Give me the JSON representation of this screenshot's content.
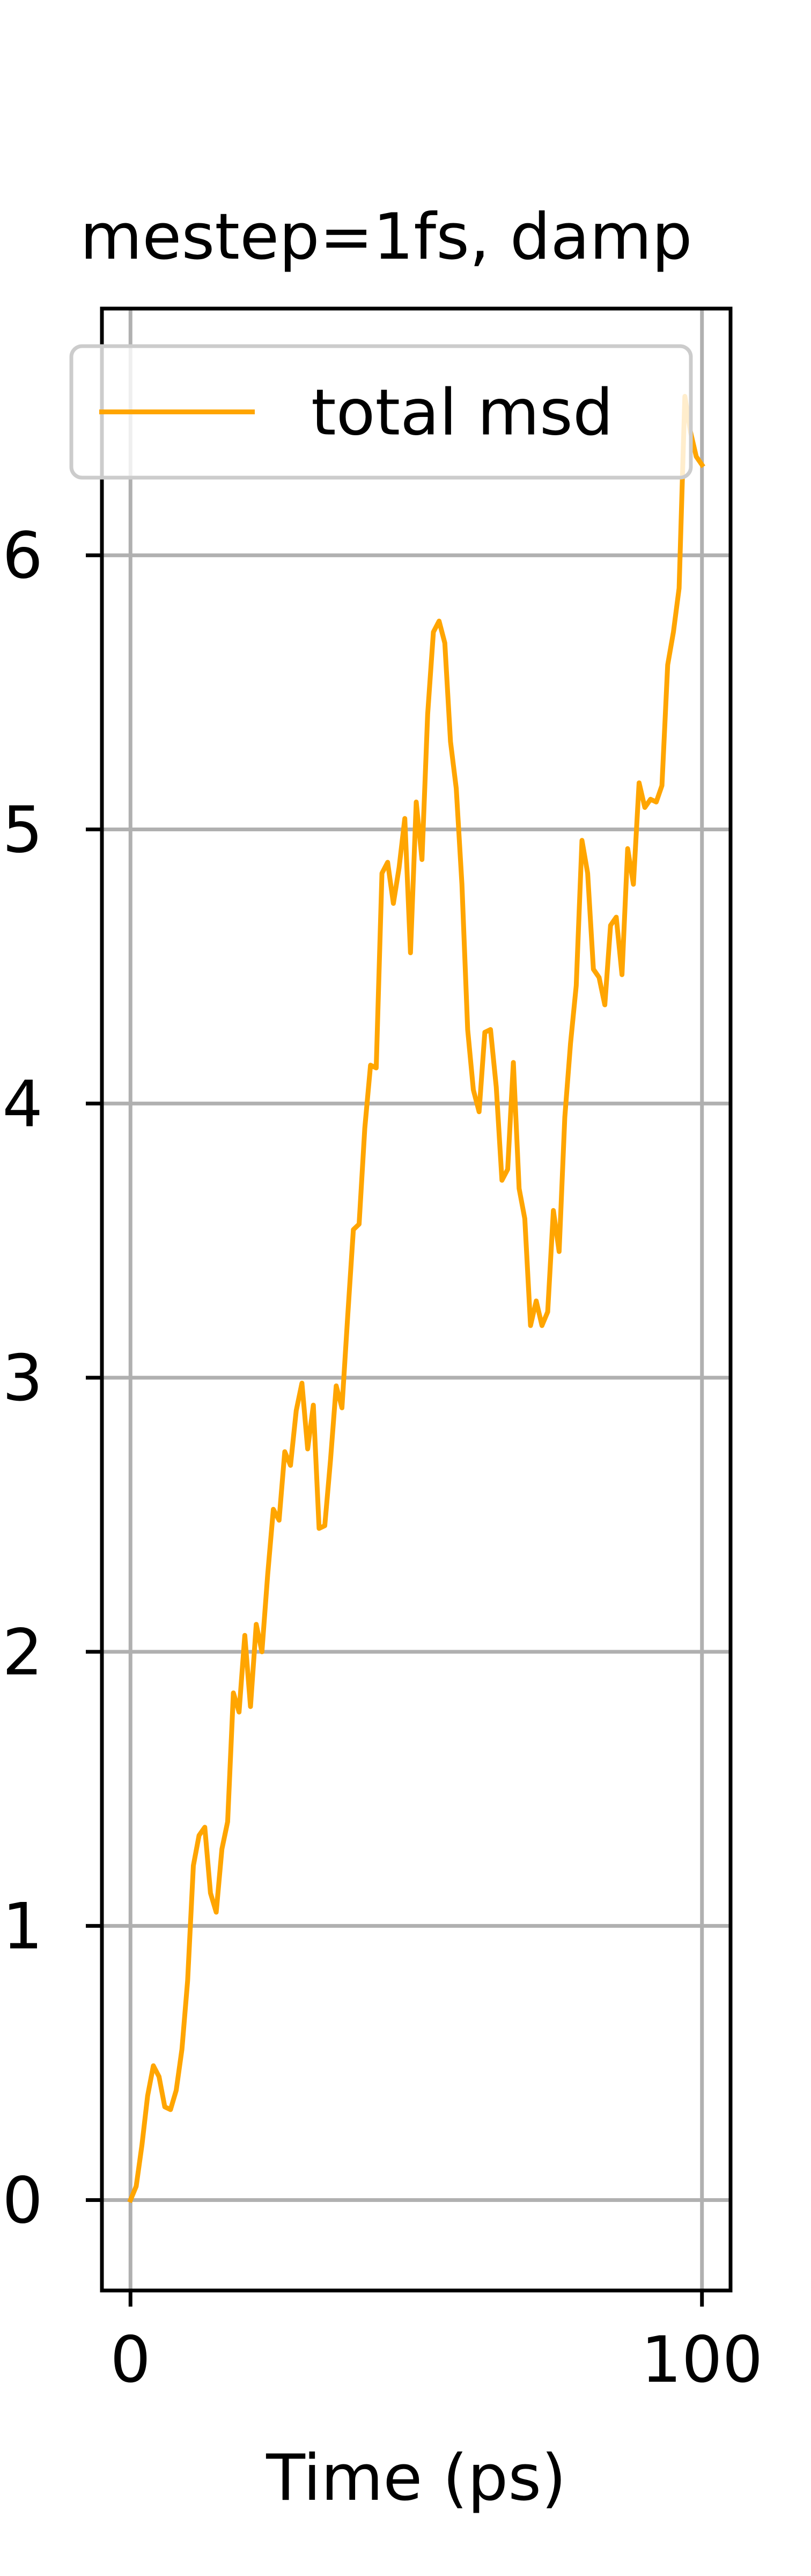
{
  "chart_data": {
    "type": "line",
    "title": "mestep=1fs, damp",
    "xlabel": "Time (ps)",
    "ylabel": "",
    "xlim": [
      -5,
      105
    ],
    "ylim": [
      -0.33,
      6.9
    ],
    "xticks": [
      0,
      100
    ],
    "xtick_labels": [
      "0",
      "100"
    ],
    "yticks": [
      0,
      1,
      2,
      3,
      4,
      5,
      6
    ],
    "ytick_labels": [
      "0",
      "1",
      "2",
      "3",
      "4",
      "5",
      "6"
    ],
    "grid": true,
    "legend_position": "top-left",
    "series": [
      {
        "name": "total msd",
        "color": "#ffa500",
        "x": [
          0,
          1,
          2,
          3,
          4,
          5,
          6,
          7,
          8,
          9,
          10,
          11,
          12,
          13,
          14,
          15,
          16,
          17,
          18,
          19,
          20,
          21,
          22,
          23,
          24,
          25,
          26,
          27,
          28,
          29,
          30,
          31,
          32,
          33,
          34,
          35,
          36,
          37,
          38,
          39,
          40,
          41,
          42,
          43,
          44,
          45,
          46,
          47,
          48,
          49,
          50,
          51,
          52,
          53,
          54,
          55,
          56,
          57,
          58,
          59,
          60,
          61,
          62,
          63,
          64,
          65,
          66,
          67,
          68,
          69,
          70,
          71,
          72,
          73,
          74,
          75,
          76,
          77,
          78,
          79,
          80,
          81,
          82,
          83,
          84,
          85,
          86,
          87,
          88,
          89,
          90,
          91,
          92,
          93,
          94,
          95,
          96,
          97,
          98,
          99,
          100
        ],
        "y": [
          0.0,
          0.05,
          0.2,
          0.38,
          0.49,
          0.45,
          0.34,
          0.33,
          0.4,
          0.55,
          0.8,
          1.22,
          1.33,
          1.36,
          1.12,
          1.05,
          1.28,
          1.38,
          1.85,
          1.78,
          2.06,
          1.8,
          2.1,
          2.0,
          2.28,
          2.52,
          2.48,
          2.73,
          2.68,
          2.88,
          2.98,
          2.74,
          2.9,
          2.45,
          2.46,
          2.7,
          2.97,
          2.89,
          3.22,
          3.54,
          3.56,
          3.91,
          4.14,
          4.13,
          4.84,
          4.88,
          4.73,
          4.86,
          5.04,
          4.55,
          5.1,
          4.89,
          5.42,
          5.72,
          5.76,
          5.68,
          5.32,
          5.15,
          4.8,
          4.27,
          4.05,
          3.97,
          4.26,
          4.27,
          4.06,
          3.72,
          3.76,
          4.15,
          3.69,
          3.58,
          3.19,
          3.28,
          3.19,
          3.24,
          3.61,
          3.46,
          3.95,
          4.22,
          4.43,
          4.96,
          4.84,
          4.49,
          4.46,
          4.36,
          4.65,
          4.68,
          4.47,
          4.93,
          4.8,
          5.17,
          5.08,
          5.11,
          5.1,
          5.16,
          5.6,
          5.72,
          5.88,
          6.58,
          6.45,
          6.36,
          6.33
        ]
      }
    ]
  }
}
